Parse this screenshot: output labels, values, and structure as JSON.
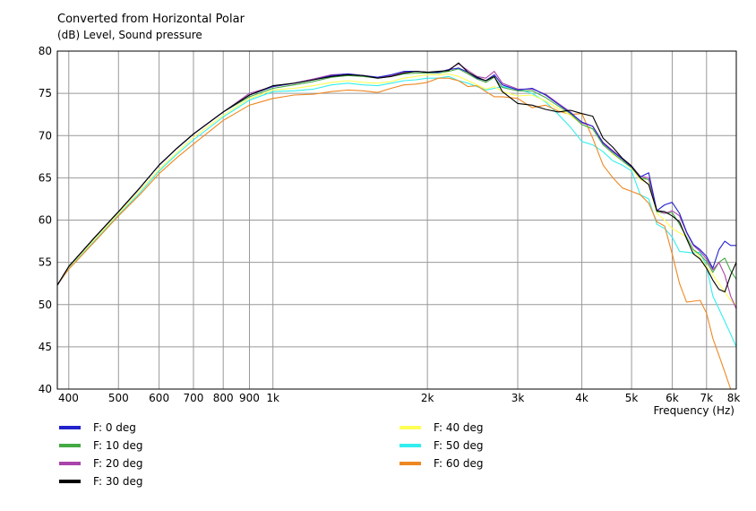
{
  "chart_data": {
    "type": "line",
    "title": "Converted from Horizontal Polar",
    "subtitle": "(dB)  Level, Sound pressure",
    "xlabel": "Frequency  (Hz)",
    "xscale": "log",
    "xlim": [
      380,
      8000
    ],
    "ylim": [
      40,
      80
    ],
    "yticks": [
      40,
      45,
      50,
      55,
      60,
      65,
      70,
      75,
      80
    ],
    "xticks": [
      {
        "value": 400,
        "label": "400"
      },
      {
        "value": 500,
        "label": "500"
      },
      {
        "value": 600,
        "label": "600"
      },
      {
        "value": 700,
        "label": "700"
      },
      {
        "value": 800,
        "label": "800"
      },
      {
        "value": 900,
        "label": "900"
      },
      {
        "value": 1000,
        "label": "1k"
      },
      {
        "value": 2000,
        "label": "2k"
      },
      {
        "value": 3000,
        "label": "3k"
      },
      {
        "value": 4000,
        "label": "4k"
      },
      {
        "value": 5000,
        "label": "5k"
      },
      {
        "value": 6000,
        "label": "6k"
      },
      {
        "value": 7000,
        "label": "7k"
      },
      {
        "value": 8000,
        "label": "8k"
      }
    ],
    "grid": true,
    "legend_position": "bottom",
    "series": [
      {
        "name": "F: 0 deg",
        "color": "#2222cc",
        "x": [
          380,
          400,
          450,
          500,
          550,
          600,
          650,
          700,
          800,
          900,
          1000,
          1100,
          1200,
          1300,
          1400,
          1500,
          1600,
          1700,
          1800,
          1900,
          2000,
          2100,
          2200,
          2300,
          2400,
          2500,
          2600,
          2700,
          2800,
          3000,
          3200,
          3400,
          3600,
          3800,
          4000,
          4200,
          4400,
          4600,
          4800,
          5000,
          5200,
          5400,
          5600,
          5800,
          6000,
          6200,
          6400,
          6600,
          6800,
          7000,
          7200,
          7400,
          7600,
          7800,
          8000
        ],
        "y": [
          52.3,
          54.5,
          58.0,
          61.0,
          63.8,
          66.5,
          68.5,
          70.2,
          72.8,
          74.8,
          75.8,
          76.2,
          76.6,
          77.1,
          77.3,
          77.1,
          76.9,
          77.2,
          77.6,
          77.6,
          77.5,
          77.5,
          77.8,
          78.0,
          77.5,
          76.8,
          76.5,
          77.2,
          76.0,
          75.4,
          75.6,
          74.8,
          73.7,
          72.7,
          71.6,
          71.1,
          69.1,
          68.1,
          67.2,
          66.3,
          65.1,
          65.6,
          61.1,
          61.8,
          62.1,
          60.8,
          58.6,
          57.1,
          56.5,
          55.7,
          54.3,
          56.5,
          57.5,
          57.0,
          57.0
        ]
      },
      {
        "name": "F: 10 deg",
        "color": "#44aa44",
        "x": [
          380,
          400,
          450,
          500,
          550,
          600,
          650,
          700,
          800,
          900,
          1000,
          1100,
          1200,
          1300,
          1400,
          1500,
          1600,
          1700,
          1800,
          1900,
          2000,
          2100,
          2200,
          2300,
          2400,
          2500,
          2600,
          2700,
          2800,
          3000,
          3200,
          3400,
          3600,
          3800,
          4000,
          4200,
          4400,
          4600,
          4800,
          5000,
          5200,
          5400,
          5600,
          5800,
          6000,
          6200,
          6400,
          6600,
          6800,
          7000,
          7200,
          7400,
          7600,
          7800,
          8000
        ],
        "y": [
          52.3,
          54.5,
          58.0,
          61.0,
          63.8,
          66.5,
          68.5,
          70.2,
          72.8,
          74.6,
          75.6,
          76.0,
          76.4,
          76.9,
          77.1,
          77.0,
          76.8,
          77.0,
          77.3,
          77.4,
          77.4,
          77.4,
          77.6,
          77.9,
          77.3,
          76.7,
          76.3,
          76.9,
          75.7,
          75.3,
          75.3,
          74.5,
          73.5,
          72.6,
          71.3,
          70.8,
          68.9,
          67.9,
          67.0,
          66.2,
          65.0,
          64.8,
          61.0,
          60.8,
          60.9,
          59.5,
          58.0,
          56.5,
          55.9,
          55.1,
          53.8,
          55.0,
          55.5,
          54.0,
          53.0
        ]
      },
      {
        "name": "F: 20 deg",
        "color": "#aa44aa",
        "x": [
          380,
          400,
          450,
          500,
          550,
          600,
          650,
          700,
          800,
          900,
          1000,
          1100,
          1200,
          1300,
          1400,
          1500,
          1600,
          1700,
          1800,
          1900,
          2000,
          2100,
          2200,
          2300,
          2400,
          2500,
          2600,
          2700,
          2800,
          3000,
          3200,
          3400,
          3600,
          3800,
          4000,
          4200,
          4400,
          4600,
          4800,
          5000,
          5200,
          5400,
          5600,
          5800,
          6000,
          6200,
          6400,
          6600,
          6800,
          7000,
          7200,
          7400,
          7600,
          7800,
          8000
        ],
        "y": [
          52.3,
          54.5,
          58.0,
          61.0,
          63.8,
          66.5,
          68.5,
          70.2,
          72.8,
          75.0,
          75.8,
          76.2,
          76.7,
          77.2,
          77.3,
          77.1,
          76.9,
          77.1,
          77.5,
          77.6,
          77.5,
          77.5,
          77.8,
          78.5,
          77.7,
          77.0,
          76.8,
          77.6,
          76.2,
          75.5,
          75.5,
          74.9,
          73.8,
          72.8,
          71.5,
          71.1,
          69.2,
          68.2,
          67.3,
          66.4,
          65.2,
          65.0,
          61.2,
          60.8,
          61.1,
          60.5,
          58.5,
          57.0,
          56.3,
          55.4,
          54.1,
          55.0,
          53.5,
          51.0,
          49.5
        ]
      },
      {
        "name": "F: 30 deg",
        "color": "#000000",
        "x": [
          380,
          400,
          450,
          500,
          550,
          600,
          650,
          700,
          800,
          900,
          1000,
          1100,
          1200,
          1300,
          1400,
          1500,
          1600,
          1700,
          1800,
          1900,
          2000,
          2100,
          2200,
          2300,
          2400,
          2500,
          2600,
          2700,
          2800,
          3000,
          3200,
          3400,
          3600,
          3800,
          4000,
          4200,
          4400,
          4600,
          4800,
          5000,
          5200,
          5400,
          5600,
          5800,
          6000,
          6200,
          6400,
          6600,
          6800,
          7000,
          7200,
          7400,
          7600,
          7800,
          8000
        ],
        "y": [
          52.3,
          54.5,
          58.0,
          61.0,
          63.8,
          66.5,
          68.5,
          70.2,
          72.8,
          74.8,
          75.9,
          76.2,
          76.6,
          77.0,
          77.2,
          77.1,
          76.8,
          77.0,
          77.4,
          77.6,
          77.5,
          77.6,
          77.7,
          78.6,
          77.5,
          76.9,
          76.5,
          77.0,
          75.2,
          73.8,
          73.6,
          73.1,
          72.8,
          73.0,
          72.6,
          72.3,
          69.7,
          68.6,
          67.3,
          66.4,
          65.0,
          64.2,
          61.1,
          61.0,
          60.5,
          59.8,
          57.8,
          56.0,
          55.4,
          54.3,
          52.9,
          51.8,
          51.5,
          53.5,
          55.0
        ]
      },
      {
        "name": "F: 40 deg",
        "color": "#ffff55",
        "x": [
          380,
          400,
          450,
          500,
          550,
          600,
          650,
          700,
          800,
          900,
          1000,
          1100,
          1200,
          1300,
          1400,
          1500,
          1600,
          1700,
          1800,
          1900,
          2000,
          2100,
          2200,
          2300,
          2400,
          2500,
          2600,
          2700,
          2800,
          3000,
          3200,
          3400,
          3600,
          3800,
          4000,
          4200,
          4400,
          4600,
          4800,
          5000,
          5200,
          5400,
          5600,
          5800,
          6000,
          6200,
          6400,
          6600,
          6800,
          7000,
          7200,
          7400,
          7600,
          7800,
          8000
        ],
        "y": [
          52.3,
          54.4,
          57.8,
          60.8,
          63.5,
          66.0,
          68.0,
          69.8,
          72.4,
          74.4,
          75.4,
          75.6,
          75.9,
          76.3,
          76.5,
          76.3,
          76.2,
          76.4,
          76.8,
          77.0,
          77.2,
          77.2,
          77.3,
          77.0,
          76.5,
          76.0,
          75.5,
          75.8,
          75.2,
          74.7,
          74.8,
          74.1,
          73.2,
          72.4,
          71.3,
          70.8,
          69.0,
          67.8,
          67.0,
          66.1,
          64.8,
          64.3,
          60.8,
          60.0,
          59.0,
          58.5,
          58.0,
          56.5,
          55.5,
          54.5,
          53.5,
          52.5,
          51.5,
          50.5,
          50.0
        ]
      },
      {
        "name": "F: 50 deg",
        "color": "#33eeee",
        "x": [
          380,
          400,
          450,
          500,
          550,
          600,
          650,
          700,
          800,
          900,
          1000,
          1100,
          1200,
          1300,
          1400,
          1500,
          1600,
          1700,
          1800,
          1900,
          2000,
          2100,
          2200,
          2300,
          2400,
          2500,
          2600,
          2700,
          2800,
          3000,
          3200,
          3400,
          3600,
          3800,
          4000,
          4200,
          4400,
          4600,
          4800,
          5000,
          5200,
          5400,
          5600,
          5800,
          6000,
          6200,
          6400,
          6600,
          6800,
          7000,
          7200,
          7400,
          7600,
          7800,
          8000
        ],
        "y": [
          52.3,
          54.3,
          57.6,
          60.6,
          63.2,
          65.8,
          67.8,
          69.5,
          72.2,
          74.2,
          75.2,
          75.3,
          75.5,
          76.0,
          76.2,
          76.0,
          75.9,
          76.2,
          76.5,
          76.6,
          76.8,
          76.8,
          77.0,
          76.5,
          76.2,
          75.8,
          75.4,
          75.6,
          75.8,
          75.5,
          75.0,
          74.0,
          72.5,
          71.0,
          69.3,
          68.9,
          68.1,
          67.0,
          66.5,
          65.8,
          63.0,
          62.5,
          59.5,
          59.0,
          58.0,
          56.3,
          56.2,
          56.1,
          56.2,
          54.5,
          51.0,
          49.5,
          48.0,
          46.5,
          45.0
        ]
      },
      {
        "name": "F: 60 deg",
        "color": "#ee8822",
        "x": [
          380,
          400,
          450,
          500,
          550,
          600,
          650,
          700,
          800,
          900,
          1000,
          1100,
          1200,
          1300,
          1400,
          1500,
          1600,
          1700,
          1800,
          1900,
          2000,
          2100,
          2200,
          2300,
          2400,
          2500,
          2600,
          2700,
          2800,
          3000,
          3200,
          3400,
          3600,
          3800,
          4000,
          4200,
          4400,
          4600,
          4800,
          5000,
          5200,
          5400,
          5600,
          5800,
          6000,
          6200,
          6400,
          6600,
          6800,
          7000,
          7200,
          7400,
          7600,
          7800
        ],
        "y": [
          52.3,
          54.2,
          57.5,
          60.5,
          63.0,
          65.5,
          67.4,
          69.0,
          71.8,
          73.6,
          74.4,
          74.8,
          74.9,
          75.2,
          75.4,
          75.3,
          75.1,
          75.6,
          76.0,
          76.1,
          76.3,
          76.8,
          76.8,
          76.5,
          75.8,
          75.9,
          75.2,
          74.6,
          74.6,
          74.4,
          73.3,
          73.6,
          72.9,
          72.5,
          72.6,
          69.7,
          66.5,
          65.0,
          63.8,
          63.4,
          63.0,
          62.0,
          59.8,
          59.3,
          56.0,
          52.5,
          50.3,
          50.4,
          50.5,
          49.0,
          46.0,
          44.0,
          42.0,
          39.5
        ]
      }
    ]
  }
}
